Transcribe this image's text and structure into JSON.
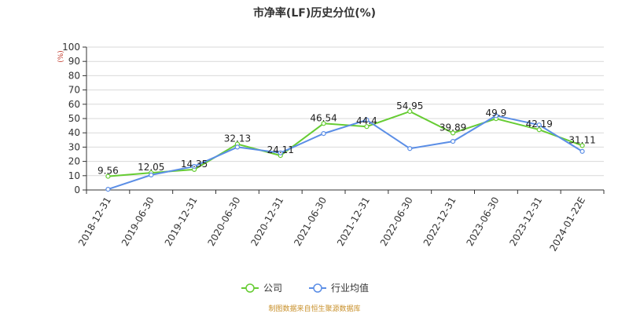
{
  "chart_data": {
    "type": "line",
    "title": "市净率(LF)历史分位(%)",
    "unit_label": "(%)",
    "ylim": [
      0,
      100
    ],
    "yticks": [
      0,
      10,
      20,
      30,
      40,
      50,
      60,
      70,
      80,
      90,
      100
    ],
    "grid": true,
    "legend_position": "bottom-center",
    "categories": [
      "2018-12-31",
      "2019-06-30",
      "2019-12-31",
      "2020-06-30",
      "2020-12-31",
      "2021-06-30",
      "2021-12-31",
      "2022-06-30",
      "2022-12-31",
      "2023-06-30",
      "2023-12-31",
      "2024-01-22E"
    ],
    "series": [
      {
        "name": "公司",
        "color": "#66cc33",
        "values": [
          9.56,
          12.05,
          14.35,
          32.13,
          24.11,
          46.54,
          44.4,
          54.95,
          39.89,
          49.9,
          42.19,
          31.11
        ],
        "data_labels": [
          "9.56",
          "12.05",
          "14.35",
          "32.13",
          "24.11",
          "46.54",
          "44.4",
          "54.95",
          "39.89",
          "49.9",
          "42.19",
          "31.11"
        ]
      },
      {
        "name": "行业均值",
        "color": "#5b8ee6",
        "values": [
          0.5,
          10.5,
          16.5,
          30,
          26,
          39.5,
          49,
          29,
          34,
          52,
          45.5,
          27
        ]
      }
    ],
    "source": "制图数据来自恒生聚源数据库"
  }
}
